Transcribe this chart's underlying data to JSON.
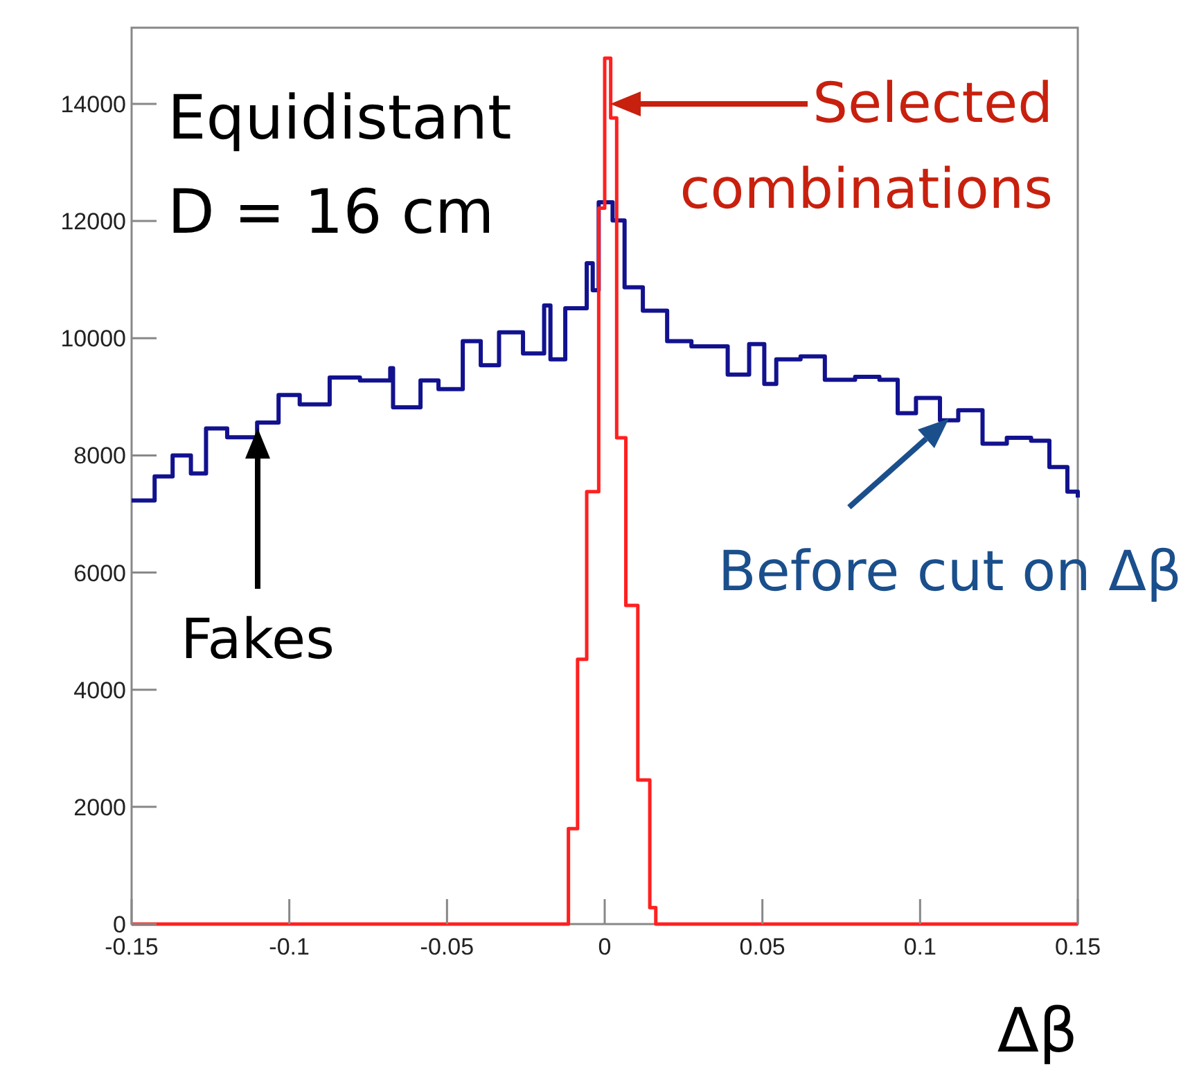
{
  "chart_data": {
    "type": "step",
    "xlabel": "Δβ",
    "xlim": [
      -0.15,
      0.15
    ],
    "xticks": [
      -0.15,
      -0.1,
      -0.05,
      0,
      0.05,
      0.1,
      0.15
    ],
    "ylim": [
      0,
      15300
    ],
    "yticks": [
      0,
      2000,
      4000,
      6000,
      8000,
      10000,
      12000,
      14000
    ],
    "grid": false,
    "series": [
      {
        "color": "#12128f",
        "x": [
          -0.15,
          -0.1427,
          -0.137,
          -0.1312,
          -0.1264,
          -0.1197,
          -0.1102,
          -0.1034,
          -0.0967,
          -0.0872,
          -0.0776,
          -0.068,
          -0.0671,
          -0.0584,
          -0.0527,
          -0.045,
          -0.0393,
          -0.0335,
          -0.0259,
          -0.0192,
          -0.0172,
          -0.0125,
          -0.0057,
          -0.0038,
          -0.0019,
          0.0025,
          0.0063,
          0.0121,
          0.0198,
          0.0275,
          0.039,
          0.0458,
          0.0506,
          0.0544,
          0.0621,
          0.0698,
          0.0794,
          0.0871,
          0.0929,
          0.0987,
          0.1063,
          0.1121,
          0.1198,
          0.1275,
          0.1352,
          0.141,
          0.1467,
          0.15
        ],
        "values": [
          7230,
          7640,
          8000,
          7690,
          8460,
          8310,
          8560,
          9030,
          8870,
          9330,
          9280,
          9490,
          8820,
          9280,
          9130,
          9950,
          9540,
          10100,
          9740,
          10560,
          9640,
          10510,
          11280,
          10820,
          12320,
          12010,
          10870,
          10470,
          9950,
          9860,
          9380,
          9900,
          9220,
          9640,
          9690,
          9290,
          9340,
          9290,
          8720,
          8980,
          8600,
          8770,
          8200,
          8300,
          8250,
          7800,
          7380,
          7280
        ]
      },
      {
        "color": "#ff2020",
        "x": [
          -0.15,
          -0.0162,
          -0.0115,
          -0.0086,
          -0.0057,
          -0.0019,
          0,
          0.0019,
          0.0038,
          0.0067,
          0.0105,
          0.0143,
          0.0162,
          0.15
        ],
        "values": [
          0,
          0,
          1630,
          4520,
          7380,
          12220,
          14780,
          13760,
          8300,
          5440,
          2460,
          280,
          0,
          0
        ]
      }
    ],
    "annotations": [
      "Equidistant",
      "D = 16 cm",
      {
        "text": "Selected combinations",
        "x": 0,
        "y": 14000
      },
      "Fakes",
      {
        "text": "Before cut on Δβ",
        "x": 0.11,
        "y": 8770
      }
    ]
  }
}
